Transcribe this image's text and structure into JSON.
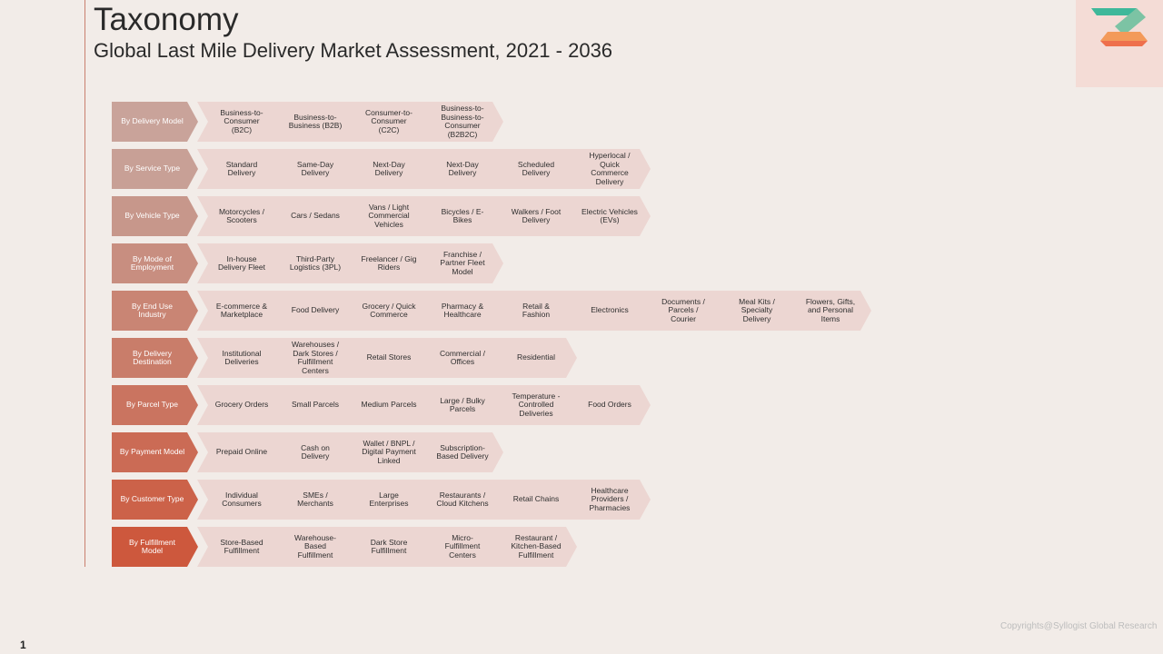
{
  "header": {
    "title": "Taxonomy",
    "subtitle": "Global Last Mile Delivery Market Assessment, 2021 - 2036"
  },
  "colors": {
    "background": "#f2ece8",
    "item_fill": "#ecd6d2",
    "head_gradient": [
      "#c9a39a",
      "#c8a096",
      "#c7978b",
      "#c88e80",
      "#c98574",
      "#c97d6a",
      "#ca7460",
      "#cb6b55",
      "#cc6249",
      "#cd583d"
    ]
  },
  "rows": [
    {
      "head": "By Delivery Model",
      "items": [
        "Business-to-Consumer (B2C)",
        "Business-to-Business (B2B)",
        "Consumer-to-Consumer (C2C)",
        "Business-to-Business-to-Consumer (B2B2C)"
      ]
    },
    {
      "head": "By Service Type",
      "items": [
        "Standard Delivery",
        "Same-Day Delivery",
        "Next-Day Delivery",
        "Next-Day Delivery",
        "Scheduled Delivery",
        "Hyperlocal / Quick Commerce Delivery"
      ]
    },
    {
      "head": "By Vehicle Type",
      "items": [
        "Motorcycles / Scooters",
        "Cars / Sedans",
        "Vans / Light Commercial Vehicles",
        "Bicycles / E-Bikes",
        "Walkers / Foot Delivery",
        "Electric Vehicles (EVs)"
      ]
    },
    {
      "head": "By Mode of Employment",
      "items": [
        "In-house Delivery Fleet",
        "Third-Party Logistics (3PL)",
        "Freelancer / Gig Riders",
        "Franchise / Partner Fleet Model"
      ]
    },
    {
      "head": "By End Use Industry",
      "items": [
        "E-commerce & Marketplace",
        "Food Delivery",
        "Grocery / Quick Commerce",
        "Pharmacy & Healthcare",
        "Retail & Fashion",
        "Electronics",
        "Documents / Parcels / Courier",
        "Meal Kits / Specialty Delivery",
        "Flowers, Gifts, and Personal Items"
      ]
    },
    {
      "head": "By Delivery Destination",
      "items": [
        "Institutional Deliveries",
        "Warehouses / Dark Stores / Fulfillment Centers",
        "Retail Stores",
        "Commercial / Offices",
        "Residential"
      ]
    },
    {
      "head": "By Parcel Type",
      "items": [
        "Grocery Orders",
        "Small Parcels",
        "Medium Parcels",
        "Large / Bulky Parcels",
        "Temperature -Controlled Deliveries",
        "Food Orders"
      ]
    },
    {
      "head": "By Payment Model",
      "items": [
        "Prepaid Online",
        "Cash on Delivery",
        "Wallet / BNPL / Digital Payment Linked",
        "Subscription-Based Delivery"
      ]
    },
    {
      "head": "By Customer Type",
      "items": [
        "Individual Consumers",
        "SMEs / Merchants",
        "Large Enterprises",
        "Restaurants / Cloud Kitchens",
        "Retail Chains",
        "Healthcare Providers / Pharmacies"
      ]
    },
    {
      "head": "By Fulfillment Model",
      "items": [
        "Store-Based Fulfillment",
        "Warehouse-Based Fulfillment",
        "Dark Store Fulfillment",
        "Micro-Fulfillment Centers",
        "Restaurant / Kitchen-Based Fulfillment"
      ]
    }
  ],
  "footer": {
    "copyright": "Copyrights@Syllogist Global Research",
    "page_number": "1"
  }
}
